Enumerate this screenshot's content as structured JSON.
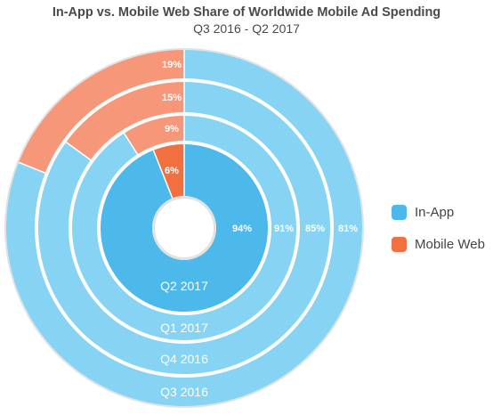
{
  "chart_data": {
    "type": "pie",
    "subtype": "nested-donut",
    "title": "In-App vs. Mobile Web Share of Worldwide Mobile Ad Spending",
    "subtitle": "Q3 2016 - Q2 2017",
    "legend_position": "right",
    "series_labels": [
      "In-App",
      "Mobile Web"
    ],
    "colors": {
      "In-App": "#4db8ea",
      "In-App-light": "#86d3f4",
      "Mobile Web": "#f07040",
      "Mobile Web-light": "#f6977a",
      "ring-outline": "#e2e2e2"
    },
    "rings": [
      {
        "label": "Q2 2017",
        "in_app": 94,
        "mobile_web": 6,
        "in_app_label": "94%",
        "mobile_web_label": "6%"
      },
      {
        "label": "Q1 2017",
        "in_app": 91,
        "mobile_web": 9,
        "in_app_label": "91%",
        "mobile_web_label": "9%"
      },
      {
        "label": "Q4 2016",
        "in_app": 85,
        "mobile_web": 15,
        "in_app_label": "85%",
        "mobile_web_label": "15%"
      },
      {
        "label": "Q3  2016",
        "in_app": 81,
        "mobile_web": 19,
        "in_app_label": "81%",
        "mobile_web_label": "19%"
      }
    ]
  }
}
